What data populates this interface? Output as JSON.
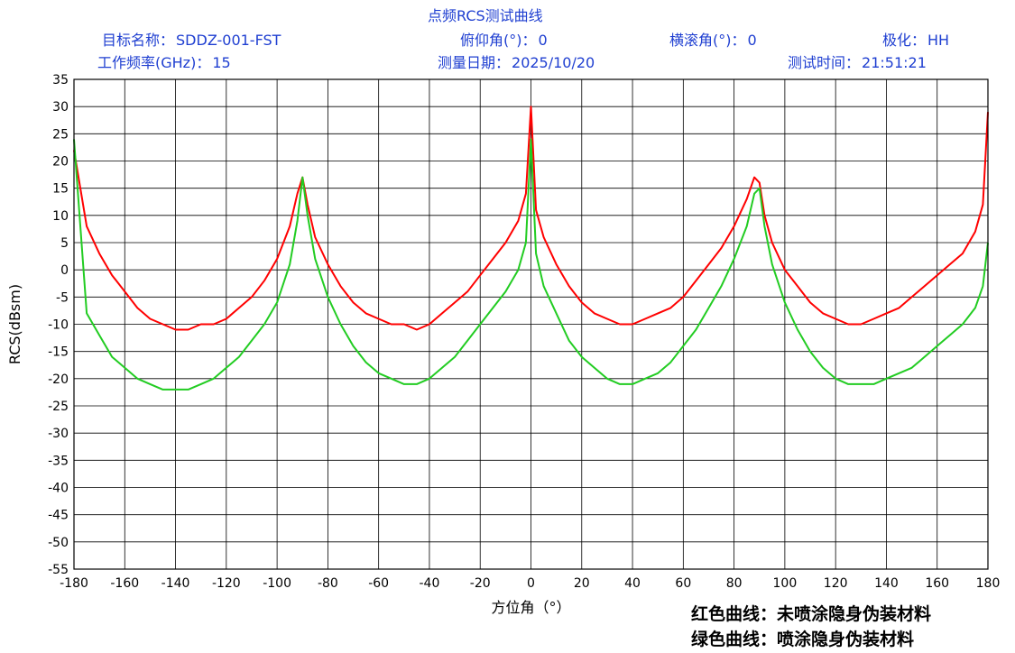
{
  "header": {
    "title": "点频RCS测试曲线",
    "target_label": "目标名称：",
    "target_value": "SDDZ-001-FST",
    "pitch_label": "俯仰角(°)：",
    "pitch_value": "0",
    "roll_label": "横滚角(°)：",
    "roll_value": "0",
    "polar_label": "极化：",
    "polar_value": "HH",
    "freq_label": "工作频率(GHz)：",
    "freq_value": "15",
    "date_label": "测量日期：",
    "date_value": "2025/10/20",
    "time_label": "测试时间：",
    "time_value": "21:51:21"
  },
  "notes": {
    "red_note": "红色曲线：未喷涂隐身伪装材料",
    "green_note": "绿色曲线：喷涂隐身伪装材料"
  },
  "chart_data": {
    "type": "line",
    "title": "点频RCS测试曲线",
    "xlabel": "方位角（°）",
    "ylabel": "RCS(dBsm)",
    "xlim": [
      -180,
      180
    ],
    "ylim": [
      -55,
      35
    ],
    "x_ticks": [
      -180,
      -160,
      -140,
      -120,
      -100,
      -80,
      -60,
      -40,
      -20,
      0,
      20,
      40,
      60,
      80,
      100,
      120,
      140,
      160,
      180
    ],
    "y_ticks": [
      35,
      30,
      25,
      20,
      15,
      10,
      5,
      0,
      -5,
      -10,
      -15,
      -20,
      -25,
      -30,
      -35,
      -40,
      -45,
      -50,
      -55
    ],
    "grid": true,
    "series": [
      {
        "color": "#ff0000",
        "x": [
          -180,
          -175,
          -170,
          -165,
          -160,
          -155,
          -150,
          -145,
          -140,
          -135,
          -130,
          -125,
          -120,
          -115,
          -110,
          -105,
          -100,
          -95,
          -92,
          -90,
          -88,
          -85,
          -80,
          -75,
          -70,
          -65,
          -60,
          -55,
          -50,
          -45,
          -40,
          -35,
          -30,
          -25,
          -20,
          -15,
          -10,
          -5,
          -2,
          0,
          2,
          5,
          10,
          15,
          20,
          25,
          30,
          35,
          40,
          45,
          50,
          55,
          60,
          65,
          70,
          75,
          80,
          85,
          88,
          90,
          92,
          95,
          100,
          105,
          110,
          115,
          120,
          125,
          130,
          135,
          140,
          145,
          150,
          155,
          160,
          165,
          170,
          175,
          178,
          180
        ],
        "values": [
          22,
          8,
          3,
          -1,
          -4,
          -7,
          -9,
          -10,
          -11,
          -11,
          -10,
          -10,
          -9,
          -7,
          -5,
          -2,
          2,
          8,
          14,
          17,
          12,
          6,
          1,
          -3,
          -6,
          -8,
          -9,
          -10,
          -10,
          -11,
          -10,
          -8,
          -6,
          -4,
          -1,
          2,
          5,
          9,
          14,
          30,
          11,
          6,
          1,
          -3,
          -6,
          -8,
          -9,
          -10,
          -10,
          -9,
          -8,
          -7,
          -5,
          -2,
          1,
          4,
          8,
          13,
          17,
          16,
          10,
          5,
          0,
          -3,
          -6,
          -8,
          -9,
          -10,
          -10,
          -9,
          -8,
          -7,
          -5,
          -3,
          -1,
          1,
          3,
          7,
          12,
          29
        ]
      },
      {
        "color": "#22cc22",
        "x": [
          -180,
          -175,
          -170,
          -165,
          -160,
          -155,
          -150,
          -145,
          -140,
          -135,
          -130,
          -125,
          -120,
          -115,
          -110,
          -105,
          -100,
          -95,
          -92,
          -90,
          -88,
          -85,
          -80,
          -75,
          -70,
          -65,
          -60,
          -55,
          -50,
          -45,
          -40,
          -35,
          -30,
          -25,
          -20,
          -15,
          -10,
          -5,
          -2,
          0,
          2,
          5,
          10,
          15,
          20,
          25,
          30,
          35,
          40,
          45,
          50,
          55,
          60,
          65,
          70,
          75,
          80,
          85,
          88,
          90,
          92,
          95,
          100,
          105,
          110,
          115,
          120,
          125,
          130,
          135,
          140,
          145,
          150,
          155,
          160,
          165,
          170,
          175,
          178,
          180
        ],
        "values": [
          24,
          -8,
          -12,
          -16,
          -18,
          -20,
          -21,
          -22,
          -22,
          -22,
          -21,
          -20,
          -18,
          -16,
          -13,
          -10,
          -6,
          1,
          9,
          17,
          10,
          2,
          -5,
          -10,
          -14,
          -17,
          -19,
          -20,
          -21,
          -21,
          -20,
          -18,
          -16,
          -13,
          -10,
          -7,
          -4,
          0,
          5,
          24,
          3,
          -3,
          -8,
          -13,
          -16,
          -18,
          -20,
          -21,
          -21,
          -20,
          -19,
          -17,
          -14,
          -11,
          -7,
          -3,
          2,
          8,
          14,
          15,
          8,
          1,
          -6,
          -11,
          -15,
          -18,
          -20,
          -21,
          -21,
          -21,
          -20,
          -19,
          -18,
          -16,
          -14,
          -12,
          -10,
          -7,
          -3,
          5
        ]
      }
    ]
  }
}
